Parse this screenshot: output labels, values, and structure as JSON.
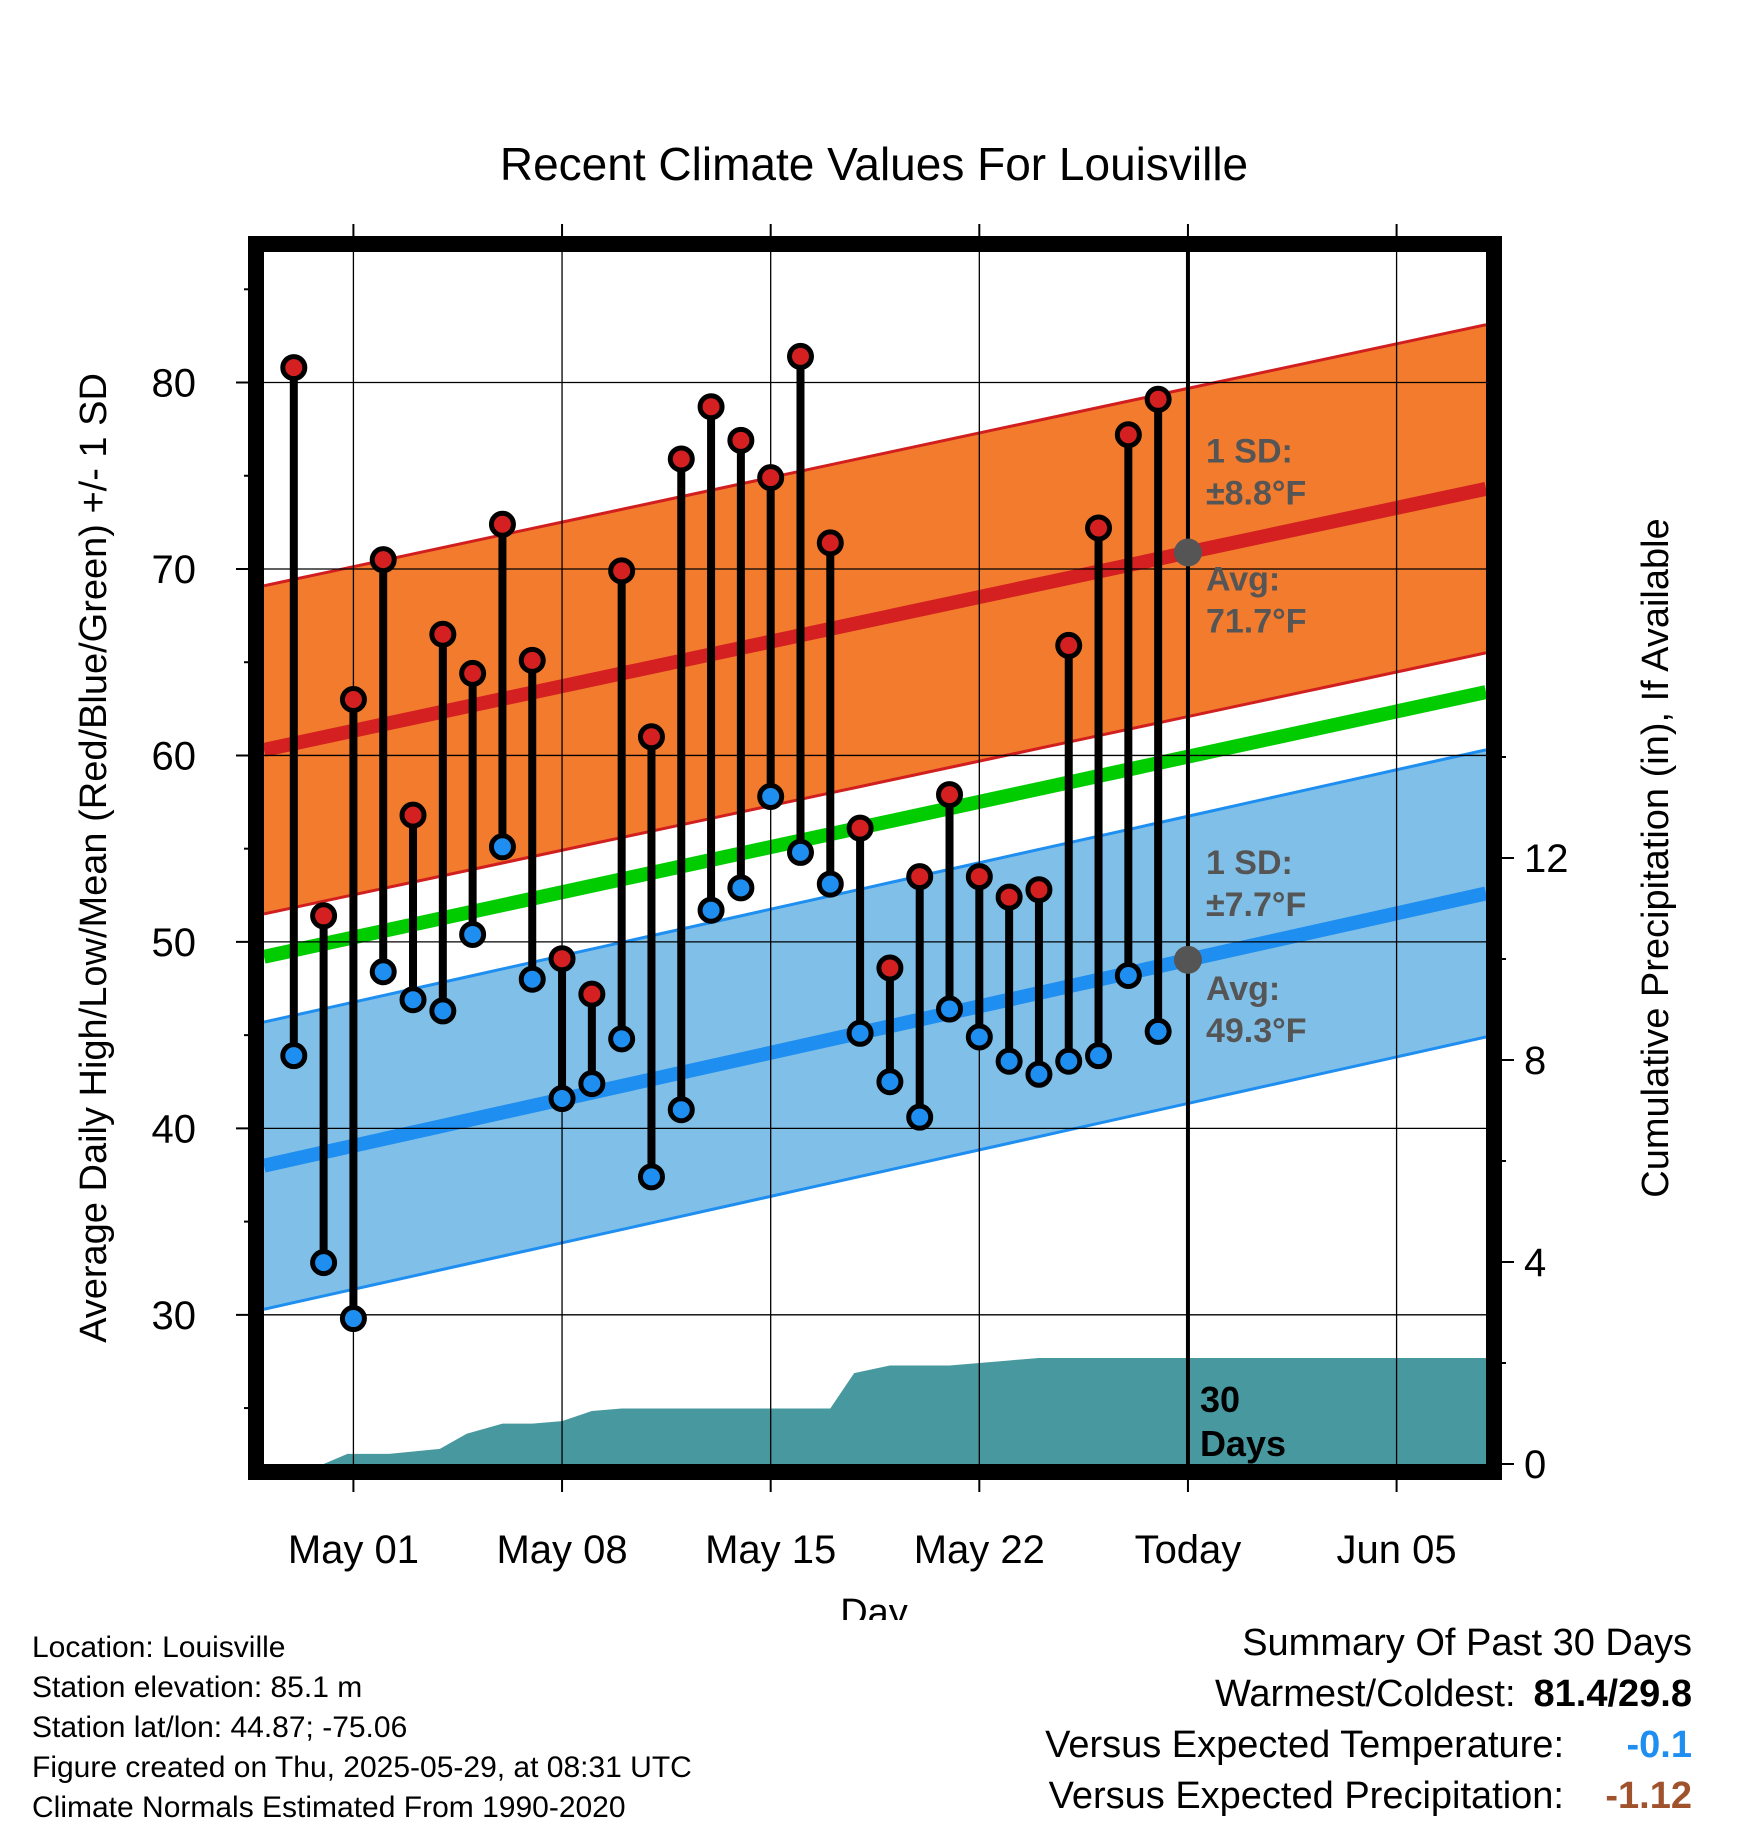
{
  "chart_data": {
    "type": "line",
    "title": "Recent Climate Values For Louisville",
    "xlabel": "Day",
    "ylabel": "Average Daily High/Low/Mean (Red/Blue/Green) +/- 1 SD",
    "y2label": "Cumulative Precipitation (in), If Available",
    "ylim": [
      22,
      87
    ],
    "y2lim": [
      0,
      24
    ],
    "yticks": [
      30,
      40,
      50,
      60,
      70,
      80
    ],
    "y2ticks": [
      0,
      4,
      8,
      12
    ],
    "x_start": "Apr 28",
    "x_end": "Jun 07",
    "xticks": [
      {
        "day": 3,
        "label": "May 01"
      },
      {
        "day": 10,
        "label": "May 08"
      },
      {
        "day": 17,
        "label": "May 15"
      },
      {
        "day": 24,
        "label": "May 22"
      },
      {
        "day": 31,
        "label": "Today"
      },
      {
        "day": 38,
        "label": "Jun 05"
      }
    ],
    "today_day": 31,
    "days": [
      1,
      2,
      3,
      4,
      5,
      6,
      7,
      8,
      9,
      10,
      11,
      12,
      13,
      14,
      15,
      16,
      17,
      18,
      19,
      20,
      21,
      22,
      23,
      24,
      25,
      26,
      27,
      28,
      29,
      30
    ],
    "highs": [
      80.8,
      51.4,
      63.0,
      70.5,
      56.8,
      66.5,
      64.4,
      72.4,
      65.1,
      49.1,
      47.2,
      69.9,
      61.0,
      75.9,
      78.7,
      76.9,
      74.9,
      81.4,
      71.4,
      56.1,
      48.6,
      53.5,
      57.9,
      53.5,
      52.4,
      52.8,
      65.9,
      72.2,
      77.2,
      79.1
    ],
    "lows": [
      43.9,
      32.8,
      29.8,
      48.4,
      46.9,
      46.3,
      50.4,
      55.1,
      48.0,
      41.6,
      42.4,
      44.8,
      37.4,
      41.0,
      51.7,
      52.9,
      57.8,
      54.8,
      53.1,
      45.1,
      42.5,
      40.6,
      46.4,
      44.9,
      43.6,
      42.9,
      43.6,
      43.9,
      48.2,
      45.2
    ],
    "normal_high": {
      "days": [
        0,
        41
      ],
      "values": [
        60.3,
        74.3
      ]
    },
    "normal_high_sd": 8.8,
    "normal_low": {
      "days": [
        0,
        41
      ],
      "values": [
        38.0,
        52.6
      ]
    },
    "normal_low_sd": 7.7,
    "normal_mean": {
      "days": [
        0,
        41
      ],
      "values": [
        49.2,
        63.4
      ]
    },
    "precip_cumulative": {
      "days": [
        0,
        2,
        2.8,
        4.2,
        5.9,
        6.8,
        8,
        9,
        10,
        11,
        12,
        13,
        14,
        15,
        16,
        17,
        18,
        19,
        19.8,
        21,
        22,
        23,
        25,
        26,
        27,
        28,
        29,
        30,
        31,
        32,
        35,
        38,
        41
      ],
      "values": [
        0.0,
        0.0,
        0.2,
        0.2,
        0.3,
        0.6,
        0.8,
        0.8,
        0.85,
        1.05,
        1.1,
        1.1,
        1.1,
        1.1,
        1.1,
        1.1,
        1.1,
        1.1,
        1.8,
        1.95,
        1.95,
        1.95,
        2.05,
        2.1,
        2.1,
        2.1,
        2.1,
        2.1,
        2.1,
        2.1,
        2.1,
        2.1,
        2.1
      ]
    },
    "annotations": {
      "high_sd": [
        "1 SD:",
        "±8.8°F"
      ],
      "high_avg": [
        "Avg:",
        "71.7°F"
      ],
      "low_sd": [
        "1 SD:",
        "±7.7°F"
      ],
      "low_avg": [
        "Avg:",
        "49.3°F"
      ],
      "precip_days": [
        "30",
        "Days"
      ]
    },
    "colors": {
      "high_band": "#f27b2e",
      "high_band_edge": "#d11f1f",
      "high_line": "#d42020",
      "low_band": "#80c0e8",
      "low_band_edge": "#1e8ef0",
      "low_line": "#1e8ef0",
      "mean_line": "#00cc00",
      "precip": "#48999f",
      "high_dot": "#d42020",
      "low_dot": "#1e8ef0",
      "marker": "#555555",
      "annotation_text": "#555555"
    }
  },
  "info": {
    "location": "Location: Louisville",
    "elevation": "Station elevation: 85.1 m",
    "latlon": "Station lat/lon: 44.87; -75.06",
    "created": "Figure created on Thu, 2025-05-29, at 08:31 UTC",
    "normals": "Climate Normals Estimated From 1990-2020"
  },
  "summary": {
    "heading": "Summary Of Past 30 Days",
    "warmest_label": "Warmest/Coldest:",
    "warmest_value": "81.4/29.8",
    "temp_label": "Versus Expected Temperature:",
    "temp_value": "-0.1",
    "temp_color": "#1e8ef0",
    "precip_label": "Versus Expected Precipitation:",
    "precip_value": "-1.12",
    "precip_color": "#a0522d"
  }
}
